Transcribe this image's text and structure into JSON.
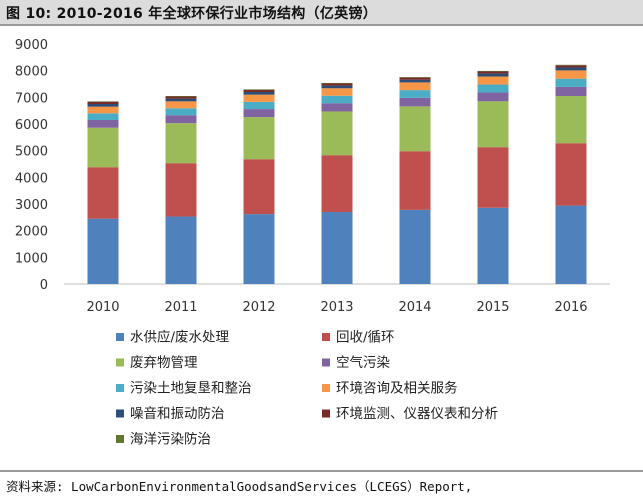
{
  "figure": {
    "title": "图 10:  2010-2016 年全球环保行业市场结构（亿英镑）",
    "source": "资料来源: LowCarbonEnvironmentalGoodsandServices（LCEGS）Report,"
  },
  "chart_data": {
    "type": "bar",
    "stacked": true,
    "categories": [
      "2010",
      "2011",
      "2012",
      "2013",
      "2014",
      "2015",
      "2016"
    ],
    "ylim": [
      0,
      9000
    ],
    "yticks": [
      0,
      1000,
      2000,
      3000,
      4000,
      5000,
      6000,
      7000,
      8000,
      9000
    ],
    "grid": false,
    "legend_position": "bottom",
    "series": [
      {
        "name": "水供应/废水处理",
        "color": "#4f81bd",
        "values": [
          2450,
          2530,
          2620,
          2700,
          2780,
          2860,
          2940
        ]
      },
      {
        "name": "回收/循环",
        "color": "#c0504d",
        "values": [
          1930,
          2000,
          2060,
          2130,
          2200,
          2270,
          2340
        ]
      },
      {
        "name": "废弃物管理",
        "color": "#9bbb59",
        "values": [
          1480,
          1500,
          1580,
          1640,
          1680,
          1720,
          1770
        ]
      },
      {
        "name": "空气污染",
        "color": "#8064a2",
        "values": [
          290,
          300,
          300,
          310,
          320,
          330,
          340
        ]
      },
      {
        "name": "污染土地复垦和整治",
        "color": "#4bacc6",
        "values": [
          250,
          260,
          270,
          280,
          290,
          300,
          310
        ]
      },
      {
        "name": "环境咨询及相关服务",
        "color": "#f79646",
        "values": [
          250,
          260,
          270,
          280,
          290,
          300,
          310
        ]
      },
      {
        "name": "噪音和振动防治",
        "color": "#2c4d75",
        "values": [
          100,
          100,
          100,
          100,
          100,
          110,
          110
        ]
      },
      {
        "name": "环境监测、仪器仪表和分析",
        "color": "#772c2a",
        "values": [
          80,
          80,
          80,
          80,
          80,
          80,
          80
        ]
      },
      {
        "name": "海洋污染防治",
        "color": "#5f7530",
        "values": [
          20,
          20,
          20,
          20,
          20,
          20,
          20
        ]
      }
    ]
  }
}
